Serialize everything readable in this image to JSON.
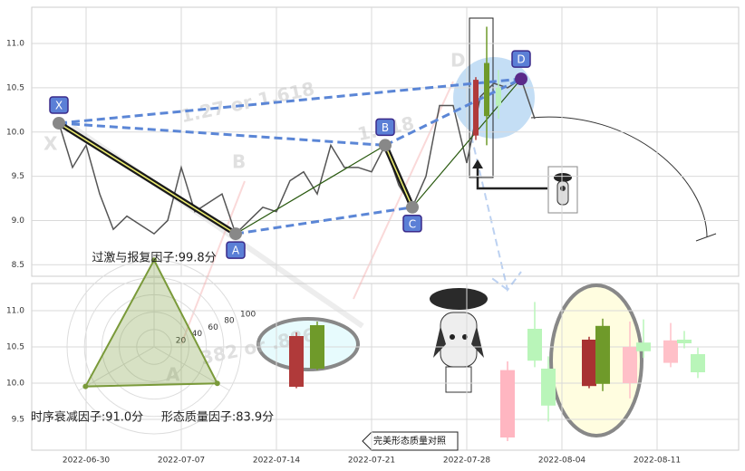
{
  "button_label": "完美形态质量对照",
  "chart_data": [
    {
      "type": "line",
      "xlim": [
        "2022-06-26",
        "2022-08-17"
      ],
      "ylim": [
        8.37,
        11.41
      ],
      "yticks": [
        8.5,
        {
          "value": 9,
          "label": "9.0"
        },
        9.5,
        {
          "value": 10,
          "label": "10.0"
        },
        10.5,
        {
          "value": 11,
          "label": "11.0"
        }
      ],
      "xticks": [
        "2022-06-30",
        "2022-07-07",
        "2022-07-14",
        "2022-07-21",
        "2022-07-28",
        "2022-08-04",
        "2022-08-11"
      ],
      "grid": true,
      "color": "#555555",
      "x": [
        "2022-06-28",
        "2022-06-29",
        "2022-06-30",
        "2022-07-01",
        "2022-07-02",
        "2022-07-03",
        "2022-07-04",
        "2022-07-05",
        "2022-07-06",
        "2022-07-07",
        "2022-07-08",
        "2022-07-09",
        "2022-07-10",
        "2022-07-11",
        "2022-07-12",
        "2022-07-13",
        "2022-07-14",
        "2022-07-15",
        "2022-07-16",
        "2022-07-17",
        "2022-07-18",
        "2022-07-19",
        "2022-07-20",
        "2022-07-21",
        "2022-07-22",
        "2022-07-23",
        "2022-07-24",
        "2022-07-25",
        "2022-07-26",
        "2022-07-27",
        "2022-07-28",
        "2022-07-29",
        "2022-07-30",
        "2022-07-31",
        "2022-08-01",
        "2022-08-02"
      ],
      "values": [
        10.1,
        9.6,
        9.85,
        9.3,
        8.9,
        9.05,
        8.95,
        8.85,
        9.0,
        9.6,
        9.1,
        9.2,
        9.3,
        8.85,
        9.0,
        9.15,
        9.1,
        9.45,
        9.55,
        9.3,
        9.85,
        9.6,
        9.6,
        9.55,
        9.85,
        9.4,
        9.15,
        9.5,
        10.3,
        10.3,
        9.65,
        10.4,
        10.55,
        10.5,
        10.6,
        10.15
      ],
      "pattern": [
        {
          "label": "X",
          "x": "2022-06-28",
          "value": 10.1
        },
        {
          "label": "A",
          "x": "2022-07-11",
          "value": 8.85
        },
        {
          "label": "B",
          "x": "2022-07-22",
          "value": 9.85
        },
        {
          "label": "C",
          "x": "2022-07-24",
          "value": 9.15
        },
        {
          "label": "D",
          "x": "2022-08-01",
          "value": 10.6
        }
      ],
      "background_labels": [
        "X",
        "B",
        "D",
        "1.27 or 1.618",
        "1.618",
        "382 or .886",
        "A"
      ],
      "inset_candles": {
        "open": [
          10.59,
          10.18,
          10.5
        ],
        "close": [
          9.96,
          10.78,
          10.3
        ],
        "high": [
          10.62,
          11.19,
          10.7
        ],
        "low": [
          9.91,
          9.85,
          10.15
        ],
        "colors": [
          "#b03a3a",
          "#6f9a2a",
          "#b8f0b8"
        ]
      }
    },
    {
      "type": "candlestick",
      "xlim": [
        "2022-06-26",
        "2022-08-17"
      ],
      "ylim": [
        9.075,
        11.375
      ],
      "yticks": [
        9.5,
        {
          "value": 10,
          "label": "10.0"
        },
        10.5,
        {
          "value": 11,
          "label": "11.0"
        }
      ],
      "xticks": [
        "2022-06-30",
        "2022-07-07",
        "2022-07-14",
        "2022-07-21",
        "2022-07-28",
        "2022-08-04",
        "2022-08-11"
      ],
      "grid": true,
      "x": [
        "2022-07-31",
        "2022-08-02",
        "2022-08-03",
        "2022-08-06",
        "2022-08-07",
        "2022-08-09",
        "2022-08-10",
        "2022-08-12",
        "2022-08-13",
        "2022-08-14"
      ],
      "open": [
        10.18,
        10.31,
        9.69,
        10.6,
        9.99,
        10.5,
        10.44,
        10.59,
        10.55,
        10.15
      ],
      "close": [
        9.25,
        10.75,
        10.2,
        9.96,
        10.79,
        10.0,
        10.56,
        10.28,
        10.6,
        10.4
      ],
      "high": [
        10.3,
        11.12,
        10.37,
        10.64,
        10.89,
        10.85,
        10.88,
        10.83,
        10.72,
        10.49
      ],
      "low": [
        9.2,
        10.22,
        9.47,
        9.93,
        9.89,
        9.79,
        10.35,
        10.22,
        10.48,
        10.07
      ],
      "colors": [
        "#ffb6c1",
        "#b9f5b9",
        "#b9f5b9",
        "#a83232",
        "#6f9a2a",
        "#ffc0c8",
        "#b9f5b9",
        "#ffc0c8",
        "#b9f5b9",
        "#b9f5b9"
      ],
      "reference_candles": {
        "open": [
          10.65,
          10.2
        ],
        "close": [
          9.95,
          10.8
        ],
        "high": [
          10.7,
          10.85
        ],
        "low": [
          9.93,
          10.18
        ],
        "colors": [
          "#b03a3a",
          "#6f9a2a"
        ]
      }
    },
    {
      "type": "radar",
      "categories": [
        "过激与报复因子:99.8分",
        "时序衰减因子:91.0分",
        "形态质量因子:83.9分"
      ],
      "values": [
        99.8,
        91.0,
        83.9
      ],
      "rlim": [
        0,
        100
      ],
      "rticks": [
        20,
        40,
        60,
        80,
        100
      ],
      "color": "#7a9a3a"
    }
  ]
}
